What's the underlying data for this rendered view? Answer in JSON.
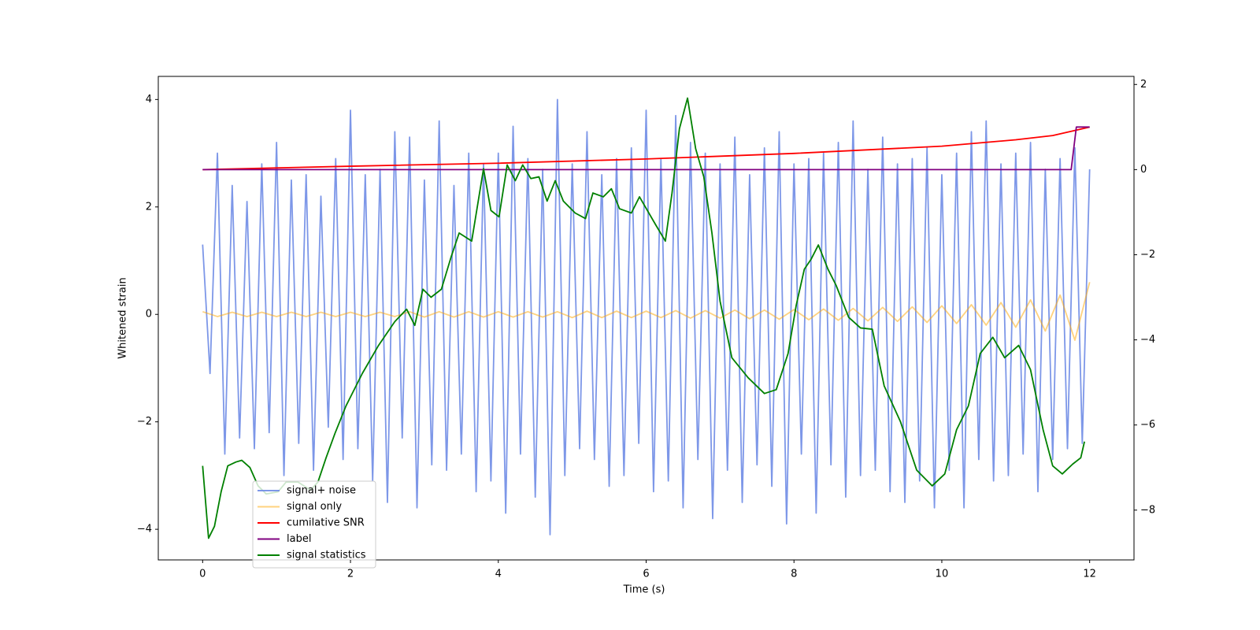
{
  "chart_data": {
    "type": "line",
    "xlabel": "Time (s)",
    "ylabel": "Whitened strain",
    "xlim": [
      -0.6,
      12.6
    ],
    "ylim": [
      -4.57,
      4.43
    ],
    "y2lim": [
      -9.17,
      2.19
    ],
    "xticks": [
      0,
      2,
      4,
      6,
      8,
      10,
      12
    ],
    "yticks": [
      {
        "value": -4,
        "label": "−4"
      },
      {
        "value": -2,
        "label": "−2"
      },
      0,
      2,
      4
    ],
    "y2ticks": [
      {
        "value": -8,
        "label": "−8"
      },
      {
        "value": -6,
        "label": "−6"
      },
      {
        "value": -4,
        "label": "−4"
      },
      {
        "value": -2,
        "label": "−2"
      },
      0,
      2
    ],
    "series": [
      {
        "name": "signal+ noise",
        "color": "#6f8ce6",
        "opacity": 0.9,
        "x": [
          0,
          0.1,
          0.2,
          0.3,
          0.4,
          0.5,
          0.6,
          0.7,
          0.8,
          0.9,
          1,
          1.1,
          1.2,
          1.3,
          1.4,
          1.5,
          1.6,
          1.7,
          1.8,
          1.9,
          2,
          2.1,
          2.2,
          2.3,
          2.4,
          2.5,
          2.6,
          2.7,
          2.8,
          2.9,
          3,
          3.1,
          3.2,
          3.3,
          3.4,
          3.5,
          3.6,
          3.7,
          3.8,
          3.9,
          4,
          4.1,
          4.2,
          4.3,
          4.4,
          4.5,
          4.6,
          4.7,
          4.8,
          4.9,
          5,
          5.1,
          5.2,
          5.3,
          5.4,
          5.5,
          5.6,
          5.7,
          5.8,
          5.9,
          6,
          6.1,
          6.2,
          6.3,
          6.4,
          6.5,
          6.6,
          6.7,
          6.8,
          6.9,
          7,
          7.1,
          7.2,
          7.3,
          7.4,
          7.5,
          7.6,
          7.7,
          7.8,
          7.9,
          8,
          8.1,
          8.2,
          8.3,
          8.4,
          8.5,
          8.6,
          8.7,
          8.8,
          8.9,
          9,
          9.1,
          9.2,
          9.3,
          9.4,
          9.5,
          9.6,
          9.7,
          9.8,
          9.9,
          10,
          10.1,
          10.2,
          10.3,
          10.4,
          10.5,
          10.6,
          10.7,
          10.8,
          10.9,
          11,
          11.1,
          11.2,
          11.3,
          11.4,
          11.5,
          11.6,
          11.7,
          11.8,
          11.9,
          12
        ],
        "values": [
          1.3,
          -1.1,
          3.0,
          -2.6,
          2.4,
          -2.3,
          2.1,
          -2.5,
          2.8,
          -2.2,
          3.2,
          -3.0,
          2.5,
          -2.4,
          2.6,
          -2.9,
          2.2,
          -2.1,
          2.9,
          -2.7,
          3.8,
          -2.5,
          2.6,
          -3.1,
          2.7,
          -3.5,
          3.4,
          -2.3,
          3.3,
          -3.6,
          2.5,
          -2.8,
          3.6,
          -2.9,
          2.4,
          -2.6,
          3.0,
          -3.3,
          2.8,
          -3.1,
          3.0,
          -3.7,
          3.5,
          -2.6,
          2.9,
          -3.4,
          2.7,
          -4.1,
          4.0,
          -3.0,
          2.8,
          -2.5,
          3.4,
          -2.7,
          2.6,
          -3.2,
          2.9,
          -3.0,
          3.1,
          -2.4,
          3.8,
          -3.3,
          2.9,
          -3.1,
          3.7,
          -3.6,
          3.2,
          -2.7,
          3.0,
          -3.8,
          2.8,
          -2.9,
          3.3,
          -3.5,
          2.6,
          -2.8,
          3.1,
          -3.2,
          3.4,
          -3.9,
          2.8,
          -2.6,
          2.9,
          -3.7,
          3.0,
          -2.8,
          3.2,
          -3.4,
          3.6,
          -3.0,
          2.7,
          -2.9,
          3.3,
          -3.3,
          2.8,
          -3.5,
          2.9,
          -3.1,
          3.1,
          -3.6,
          2.6,
          -2.9,
          3.0,
          -3.6,
          3.4,
          -2.7,
          3.6,
          -3.1,
          2.8,
          -3.0,
          3.0,
          -2.6,
          3.2,
          -3.3,
          2.7,
          -2.7,
          2.9,
          -2.5,
          3.1,
          -2.4,
          2.7
        ]
      },
      {
        "name": "signal only",
        "color": "#ffa500",
        "opacity": 0.5,
        "x": [
          0,
          0.2,
          0.4,
          0.6,
          0.8,
          1,
          1.2,
          1.4,
          1.6,
          1.8,
          2,
          2.2,
          2.4,
          2.6,
          2.8,
          3,
          3.2,
          3.4,
          3.6,
          3.8,
          4,
          4.2,
          4.4,
          4.6,
          4.8,
          5,
          5.2,
          5.4,
          5.6,
          5.8,
          6,
          6.2,
          6.4,
          6.6,
          6.8,
          7,
          7.2,
          7.4,
          7.6,
          7.8,
          8,
          8.2,
          8.4,
          8.6,
          8.8,
          9,
          9.2,
          9.4,
          9.6,
          9.8,
          10,
          10.2,
          10.4,
          10.6,
          10.8,
          11,
          11.2,
          11.4,
          11.6,
          11.8,
          12
        ],
        "values": [
          0.05,
          -0.04,
          0.04,
          -0.04,
          0.04,
          -0.04,
          0.04,
          -0.04,
          0.04,
          -0.04,
          0.04,
          -0.04,
          0.04,
          -0.04,
          0.05,
          -0.05,
          0.05,
          -0.05,
          0.05,
          -0.05,
          0.05,
          -0.05,
          0.05,
          -0.05,
          0.05,
          -0.06,
          0.06,
          -0.06,
          0.06,
          -0.06,
          0.06,
          -0.06,
          0.07,
          -0.07,
          0.07,
          -0.07,
          0.08,
          -0.08,
          0.08,
          -0.09,
          0.09,
          -0.1,
          0.1,
          -0.11,
          0.11,
          -0.12,
          0.13,
          -0.13,
          0.14,
          -0.15,
          0.16,
          -0.17,
          0.18,
          -0.2,
          0.22,
          -0.24,
          0.27,
          -0.31,
          0.36,
          -0.48,
          0.6
        ]
      },
      {
        "name": "cumilative SNR",
        "color": "#ff0000",
        "axis": "y2",
        "x": [
          0,
          2,
          4,
          6,
          8,
          10,
          11,
          11.5,
          12
        ],
        "values": [
          0,
          0.08,
          0.15,
          0.25,
          0.38,
          0.55,
          0.7,
          0.8,
          1.0
        ]
      },
      {
        "name": "label",
        "color": "#800080",
        "axis": "y2",
        "x": [
          0,
          11.75,
          11.82,
          12
        ],
        "values": [
          0,
          0,
          1,
          1
        ]
      },
      {
        "name": "signal statistics",
        "color": "#008000",
        "axis": "y2",
        "x": [
          0,
          0.08,
          0.16,
          0.25,
          0.34,
          0.45,
          0.53,
          0.64,
          0.75,
          0.86,
          1.02,
          1.13,
          1.29,
          1.46,
          1.56,
          1.67,
          1.79,
          1.94,
          2.16,
          2.38,
          2.6,
          2.76,
          2.87,
          2.98,
          3.09,
          3.23,
          3.36,
          3.47,
          3.64,
          3.8,
          3.9,
          4.01,
          4.12,
          4.23,
          4.33,
          4.44,
          4.55,
          4.66,
          4.77,
          4.88,
          5.04,
          5.18,
          5.28,
          5.42,
          5.53,
          5.64,
          5.8,
          5.91,
          6.13,
          6.26,
          6.35,
          6.45,
          6.56,
          6.67,
          6.78,
          6.89,
          7.0,
          7.16,
          7.38,
          7.6,
          7.76,
          7.92,
          8.03,
          8.14,
          8.23,
          8.33,
          8.46,
          8.57,
          8.74,
          8.9,
          9.06,
          9.22,
          9.44,
          9.66,
          9.87,
          10.04,
          10.2,
          10.36,
          10.52,
          10.69,
          10.85,
          11.04,
          11.2,
          11.37,
          11.5,
          11.63,
          11.77,
          11.88,
          11.93
        ],
        "values": [
          -6.96,
          -8.66,
          -8.38,
          -7.57,
          -6.96,
          -6.87,
          -6.83,
          -7.0,
          -7.43,
          -7.62,
          -7.57,
          -7.34,
          -7.34,
          -7.53,
          -7.34,
          -6.77,
          -6.2,
          -5.55,
          -4.79,
          -4.13,
          -3.57,
          -3.28,
          -3.66,
          -2.81,
          -3.0,
          -2.81,
          -2.06,
          -1.49,
          -1.68,
          0.02,
          -0.96,
          -1.11,
          0.11,
          -0.26,
          0.11,
          -0.21,
          -0.17,
          -0.74,
          -0.26,
          -0.74,
          -1.02,
          -1.15,
          -0.55,
          -0.64,
          -0.45,
          -0.92,
          -1.02,
          -0.64,
          -1.3,
          -1.68,
          -0.55,
          0.96,
          1.68,
          0.49,
          -0.17,
          -1.49,
          -3.09,
          -4.42,
          -4.89,
          -5.26,
          -5.17,
          -4.32,
          -3.19,
          -2.34,
          -2.11,
          -1.77,
          -2.34,
          -2.72,
          -3.47,
          -3.72,
          -3.75,
          -5.08,
          -5.92,
          -7.06,
          -7.43,
          -7.15,
          -6.11,
          -5.55,
          -4.32,
          -3.94,
          -4.42,
          -4.13,
          -4.7,
          -6.11,
          -6.96,
          -7.15,
          -6.92,
          -6.77,
          -6.39
        ]
      }
    ]
  }
}
